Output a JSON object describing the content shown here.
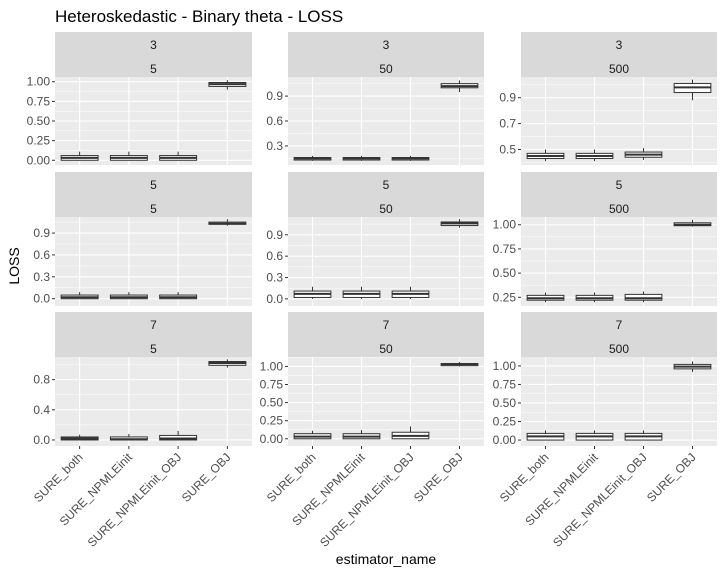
{
  "chart_data": {
    "type": "boxplot",
    "title": "Heteroskedastic - Binary theta - LOSS",
    "xlabel": "estimator_name",
    "ylabel": "LOSS",
    "categories": [
      "SURE_both",
      "SURE_NPMLEinit",
      "SURE_NPMLEinit_OBJ",
      "SURE_OBJ"
    ],
    "grid": true,
    "facet_rows": [
      "3",
      "5",
      "7"
    ],
    "facet_cols": [
      "5",
      "50",
      "500"
    ],
    "panels": [
      {
        "strip_top": "3",
        "strip_bottom": "5",
        "ylim": [
          -0.06,
          1.06
        ],
        "yticks": [
          0.0,
          0.25,
          0.5,
          0.75,
          1.0
        ],
        "yticklabels": [
          "0.00",
          "0.25",
          "0.50",
          "0.75",
          "1.00"
        ],
        "boxes": [
          {
            "min": 0.0,
            "q1": 0.0,
            "median": 0.03,
            "q3": 0.06,
            "max": 0.11
          },
          {
            "min": 0.0,
            "q1": 0.0,
            "median": 0.03,
            "q3": 0.06,
            "max": 0.11
          },
          {
            "min": 0.0,
            "q1": 0.0,
            "median": 0.03,
            "q3": 0.06,
            "max": 0.11
          },
          {
            "min": 0.9,
            "q1": 0.94,
            "median": 0.97,
            "q3": 0.99,
            "max": 1.02
          }
        ]
      },
      {
        "strip_top": "3",
        "strip_bottom": "50",
        "ylim": [
          0.07,
          1.13
        ],
        "yticks": [
          0.3,
          0.6,
          0.9
        ],
        "yticklabels": [
          "0.3",
          "0.6",
          "0.9"
        ],
        "boxes": [
          {
            "min": 0.12,
            "q1": 0.13,
            "median": 0.15,
            "q3": 0.16,
            "max": 0.18
          },
          {
            "min": 0.12,
            "q1": 0.13,
            "median": 0.15,
            "q3": 0.16,
            "max": 0.18
          },
          {
            "min": 0.12,
            "q1": 0.13,
            "median": 0.15,
            "q3": 0.16,
            "max": 0.18
          },
          {
            "min": 0.95,
            "q1": 1.0,
            "median": 1.02,
            "q3": 1.05,
            "max": 1.09
          }
        ]
      },
      {
        "strip_top": "3",
        "strip_bottom": "500",
        "ylim": [
          0.38,
          1.06
        ],
        "yticks": [
          0.5,
          0.7,
          0.9
        ],
        "yticklabels": [
          "0.5",
          "0.7",
          "0.9"
        ],
        "boxes": [
          {
            "min": 0.41,
            "q1": 0.43,
            "median": 0.45,
            "q3": 0.47,
            "max": 0.5
          },
          {
            "min": 0.41,
            "q1": 0.43,
            "median": 0.45,
            "q3": 0.47,
            "max": 0.5
          },
          {
            "min": 0.42,
            "q1": 0.44,
            "median": 0.46,
            "q3": 0.48,
            "max": 0.51
          },
          {
            "min": 0.88,
            "q1": 0.94,
            "median": 0.98,
            "q3": 1.01,
            "max": 1.04
          }
        ]
      },
      {
        "strip_top": "5",
        "strip_bottom": "5",
        "ylim": [
          -0.1,
          1.12
        ],
        "yticks": [
          0.0,
          0.3,
          0.6,
          0.9
        ],
        "yticklabels": [
          "0.0",
          "0.3",
          "0.6",
          "0.9"
        ],
        "boxes": [
          {
            "min": 0.0,
            "q1": 0.0,
            "median": 0.02,
            "q3": 0.05,
            "max": 0.09
          },
          {
            "min": 0.0,
            "q1": 0.0,
            "median": 0.02,
            "q3": 0.05,
            "max": 0.09
          },
          {
            "min": 0.0,
            "q1": 0.0,
            "median": 0.02,
            "q3": 0.05,
            "max": 0.09
          },
          {
            "min": 1.0,
            "q1": 1.02,
            "median": 1.03,
            "q3": 1.05,
            "max": 1.09
          }
        ]
      },
      {
        "strip_top": "5",
        "strip_bottom": "50",
        "ylim": [
          -0.1,
          1.15
        ],
        "yticks": [
          0.0,
          0.3,
          0.6,
          0.9
        ],
        "yticklabels": [
          "0.0",
          "0.3",
          "0.6",
          "0.9"
        ],
        "boxes": [
          {
            "min": 0.0,
            "q1": 0.02,
            "median": 0.07,
            "q3": 0.11,
            "max": 0.17
          },
          {
            "min": 0.0,
            "q1": 0.02,
            "median": 0.07,
            "q3": 0.11,
            "max": 0.17
          },
          {
            "min": 0.0,
            "q1": 0.02,
            "median": 0.07,
            "q3": 0.11,
            "max": 0.17
          },
          {
            "min": 1.0,
            "q1": 1.03,
            "median": 1.06,
            "q3": 1.08,
            "max": 1.12
          }
        ]
      },
      {
        "strip_top": "5",
        "strip_bottom": "500",
        "ylim": [
          0.16,
          1.08
        ],
        "yticks": [
          0.25,
          0.5,
          0.75,
          1.0
        ],
        "yticklabels": [
          "0.25",
          "0.50",
          "0.75",
          "1.00"
        ],
        "boxes": [
          {
            "min": 0.2,
            "q1": 0.22,
            "median": 0.24,
            "q3": 0.27,
            "max": 0.3
          },
          {
            "min": 0.2,
            "q1": 0.22,
            "median": 0.24,
            "q3": 0.27,
            "max": 0.3
          },
          {
            "min": 0.2,
            "q1": 0.22,
            "median": 0.24,
            "q3": 0.28,
            "max": 0.31
          },
          {
            "min": 0.98,
            "q1": 0.99,
            "median": 1.0,
            "q3": 1.02,
            "max": 1.05
          }
        ]
      },
      {
        "strip_top": "7",
        "strip_bottom": "5",
        "ylim": [
          -0.08,
          1.1
        ],
        "yticks": [
          0.0,
          0.4,
          0.8
        ],
        "yticklabels": [
          "0.0",
          "0.4",
          "0.8"
        ],
        "boxes": [
          {
            "min": 0.0,
            "q1": 0.0,
            "median": 0.02,
            "q3": 0.04,
            "max": 0.07
          },
          {
            "min": 0.0,
            "q1": 0.0,
            "median": 0.01,
            "q3": 0.04,
            "max": 0.08
          },
          {
            "min": 0.0,
            "q1": 0.0,
            "median": 0.02,
            "q3": 0.06,
            "max": 0.12
          },
          {
            "min": 0.96,
            "q1": 0.99,
            "median": 1.02,
            "q3": 1.04,
            "max": 1.07
          }
        ]
      },
      {
        "strip_top": "7",
        "strip_bottom": "50",
        "ylim": [
          -0.1,
          1.13
        ],
        "yticks": [
          0.0,
          0.25,
          0.5,
          0.75,
          1.0
        ],
        "yticklabels": [
          "0.00",
          "0.25",
          "0.50",
          "0.75",
          "1.00"
        ],
        "boxes": [
          {
            "min": 0.0,
            "q1": 0.0,
            "median": 0.03,
            "q3": 0.07,
            "max": 0.11
          },
          {
            "min": 0.0,
            "q1": 0.0,
            "median": 0.03,
            "q3": 0.07,
            "max": 0.12
          },
          {
            "min": 0.0,
            "q1": 0.0,
            "median": 0.04,
            "q3": 0.09,
            "max": 0.17
          },
          {
            "min": 1.0,
            "q1": 1.01,
            "median": 1.03,
            "q3": 1.04,
            "max": 1.06
          }
        ]
      },
      {
        "strip_top": "7",
        "strip_bottom": "500",
        "ylim": [
          -0.08,
          1.12
        ],
        "yticks": [
          0.0,
          0.25,
          0.5,
          0.75,
          1.0
        ],
        "yticklabels": [
          "0.00",
          "0.25",
          "0.50",
          "0.75",
          "1.00"
        ],
        "boxes": [
          {
            "min": 0.0,
            "q1": 0.0,
            "median": 0.05,
            "q3": 0.09,
            "max": 0.13
          },
          {
            "min": 0.0,
            "q1": 0.0,
            "median": 0.05,
            "q3": 0.09,
            "max": 0.13
          },
          {
            "min": 0.0,
            "q1": 0.0,
            "median": 0.05,
            "q3": 0.09,
            "max": 0.13
          },
          {
            "min": 0.92,
            "q1": 0.96,
            "median": 0.99,
            "q3": 1.02,
            "max": 1.06
          }
        ]
      }
    ],
    "colors": {
      "panel_bg": "#ebebeb",
      "strip_bg": "#d9d9d9",
      "grid_major": "#ffffff",
      "box_fill": "#ffffff",
      "box_line": "#333333"
    }
  }
}
